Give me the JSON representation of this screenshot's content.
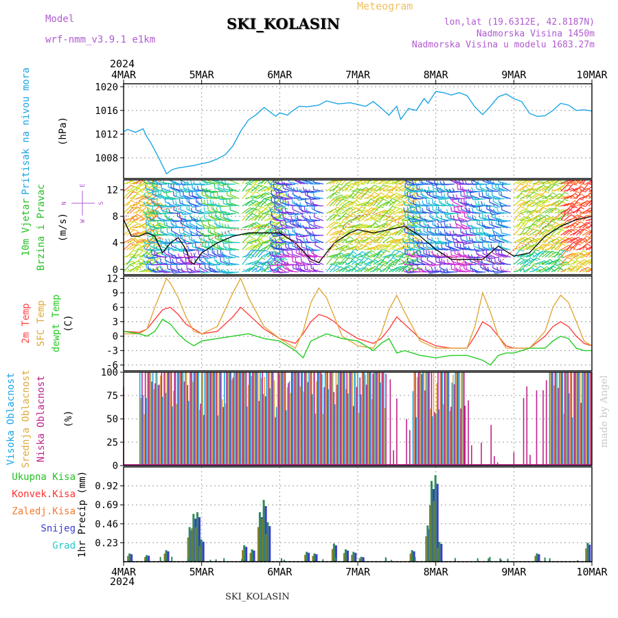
{
  "header": {
    "title": "SKI_KOLASIN",
    "meteogram_label": "Meteogram",
    "model_label": "Model",
    "model_value": "wrf-nmm_v3.9.1 e1km",
    "info_lines": [
      "lon,lat (19.6312E, 42.8187N)",
      "Nadmorska Visina 1450m",
      "Nadmorska Visina u modelu 1683.27m"
    ],
    "year_top": "2024",
    "year_bottom": "2024",
    "footer": "SKI_KOLASIN",
    "credit": "made by Angel"
  },
  "colors": {
    "pressure": "#1aa4e6",
    "wind_label": "#22c022",
    "t2m": "#ff4040",
    "sfc": "#e0a83a",
    "dewpt": "#22cc22",
    "high_cloud": "#1aa4e6",
    "mid_cloud": "#e0a83a",
    "low_cloud": "#c0208a",
    "total": "#22c022",
    "conv": "#ff3030",
    "frz": "#f07a30",
    "snow": "#3a3ad0",
    "grad": "#20c8c8",
    "compass": "#b05ad0"
  },
  "chart_data": [
    {
      "type": "line",
      "id": "pressure",
      "ylabel": [
        "Pritisak na nivou mora",
        "(hPa)"
      ],
      "x_categories": [
        "4MAR",
        "5MAR",
        "6MAR",
        "7MAR",
        "8MAR",
        "9MAR",
        "10MAR"
      ],
      "ylim": [
        1004.5,
        1020.5
      ],
      "yticks": [
        1008,
        1012,
        1016,
        1020
      ],
      "series": [
        {
          "x": [
            0,
            0.05,
            0.15,
            0.25,
            0.3,
            0.35,
            0.45,
            0.55,
            0.62,
            0.7,
            0.8,
            0.9,
            1.0,
            1.1,
            1.2,
            1.3,
            1.4,
            1.5,
            1.6,
            1.7,
            1.8,
            1.85,
            1.95,
            2.0,
            2.1,
            2.15,
            2.25,
            2.35,
            2.5,
            2.6,
            2.75,
            2.9,
            3.0,
            3.1,
            3.2,
            3.3,
            3.4,
            3.5,
            3.55,
            3.65,
            3.75,
            3.85,
            3.9,
            4.0,
            4.1,
            4.2,
            4.3,
            4.4,
            4.5,
            4.6,
            4.7,
            4.8,
            4.9,
            5.0,
            5.1,
            5.2,
            5.3,
            5.4,
            5.5,
            5.6,
            5.7,
            5.8,
            5.9,
            6.0
          ],
          "y": [
            1012.4,
            1012.8,
            1012.3,
            1012.9,
            1011.5,
            1010.5,
            1008.0,
            1005.3,
            1006.0,
            1006.3,
            1006.5,
            1006.7,
            1007.0,
            1007.3,
            1007.8,
            1008.5,
            1010.0,
            1012.5,
            1014.4,
            1015.3,
            1016.5,
            1016.0,
            1015.0,
            1015.6,
            1015.2,
            1015.8,
            1016.7,
            1016.6,
            1016.9,
            1017.6,
            1017.1,
            1017.3,
            1017.0,
            1016.7,
            1017.5,
            1016.4,
            1015.2,
            1016.7,
            1014.5,
            1016.3,
            1016.0,
            1018.0,
            1017.2,
            1019.2,
            1019.0,
            1018.6,
            1019.0,
            1018.5,
            1016.6,
            1015.3,
            1016.7,
            1018.3,
            1018.8,
            1018.0,
            1017.5,
            1015.5,
            1015.0,
            1015.1,
            1016.0,
            1017.2,
            1016.9,
            1016.0,
            1016.1,
            1015.9
          ]
        }
      ]
    },
    {
      "type": "line",
      "id": "wind",
      "ylabel": [
        "10m Vjetar",
        "Brzina i Pravac",
        "(m/s)"
      ],
      "compass": [
        "N",
        "W",
        "E",
        "S"
      ],
      "ylim": [
        -0.8,
        13.5
      ],
      "yticks": [
        0,
        4,
        8,
        12
      ],
      "series": [
        {
          "name": "speed",
          "x": [
            0,
            0.1,
            0.2,
            0.3,
            0.4,
            0.5,
            0.6,
            0.7,
            0.8,
            0.85,
            0.9,
            1.0,
            1.2,
            1.4,
            1.6,
            1.8,
            2.0,
            2.2,
            2.4,
            2.5,
            2.6,
            2.7,
            2.9,
            3.0,
            3.2,
            3.4,
            3.6,
            3.8,
            4.0,
            4.2,
            4.4,
            4.6,
            4.8,
            5.0,
            5.2,
            5.4,
            5.6,
            5.8,
            6.0
          ],
          "y": [
            7.5,
            5,
            5,
            5.5,
            5,
            2.5,
            4,
            4.8,
            3,
            1.2,
            0.8,
            2.5,
            4,
            5,
            5.5,
            5.5,
            5.5,
            4,
            1.5,
            1,
            2.5,
            4,
            5.5,
            6,
            5.5,
            6,
            6.5,
            5,
            3,
            1.5,
            1.5,
            1.5,
            3.5,
            2,
            2.5,
            5,
            6.5,
            7.5,
            8
          ]
        },
        {
          "name": "sfc-speed",
          "x": [
            0,
            0.15,
            0.3,
            0.5,
            0.7,
            0.85,
            1.0,
            1.2,
            1.4,
            1.6,
            1.8,
            2.0,
            2.2,
            2.4,
            2.6,
            2.8,
            3.0,
            3.2,
            3.4,
            3.6,
            3.8,
            4.0,
            4.2,
            4.4,
            4.6,
            4.8,
            5.0,
            5.2,
            5.4,
            5.6,
            5.8,
            6.0
          ],
          "y": [
            7.5,
            10,
            11,
            9,
            9.5,
            1,
            4,
            5,
            6,
            6,
            6.5,
            6,
            4,
            1,
            2,
            6,
            8,
            8.5,
            8,
            6.5,
            4,
            2,
            2,
            0.7,
            1.5,
            0.8,
            3,
            4,
            6.5,
            8.5,
            8,
            8
          ]
        }
      ]
    },
    {
      "type": "line",
      "id": "temperature",
      "ylabel": [
        "2m Temp",
        "SFC Temp",
        "dewpt Temp",
        "(C)"
      ],
      "ylim": [
        -7.2,
        12.5
      ],
      "yticks": [
        -6,
        -3,
        0,
        3,
        6,
        9,
        12
      ],
      "series": [
        {
          "name": "2m Temp",
          "x": [
            0,
            0.2,
            0.3,
            0.4,
            0.5,
            0.6,
            0.7,
            0.8,
            0.9,
            1.0,
            1.2,
            1.4,
            1.5,
            1.6,
            1.7,
            1.8,
            2.0,
            2.2,
            2.3,
            2.4,
            2.5,
            2.6,
            2.7,
            2.8,
            3.0,
            3.2,
            3.3,
            3.4,
            3.5,
            3.6,
            3.7,
            3.8,
            4.0,
            4.2,
            4.4,
            4.5,
            4.6,
            4.7,
            4.8,
            4.9,
            5.0,
            5.2,
            5.4,
            5.5,
            5.6,
            5.7,
            5.8,
            5.9,
            6.0
          ],
          "y": [
            1,
            0.8,
            1.5,
            3.5,
            5.5,
            6,
            4.5,
            2.5,
            1.5,
            0.5,
            1,
            4,
            6,
            4.5,
            3,
            1.5,
            -0.5,
            -1.5,
            0.5,
            3,
            4.5,
            4,
            3,
            1.5,
            -0.5,
            -1.5,
            -0.5,
            1.5,
            4,
            2.5,
            1,
            -0.5,
            -2,
            -2.5,
            -2.5,
            0,
            3,
            2,
            0,
            -2,
            -2.5,
            -2.5,
            0,
            2,
            3,
            2,
            0,
            -1.5,
            -2
          ]
        },
        {
          "name": "SFC Temp",
          "x": [
            0,
            0.2,
            0.3,
            0.4,
            0.5,
            0.55,
            0.6,
            0.7,
            0.8,
            0.9,
            1.0,
            1.2,
            1.4,
            1.5,
            1.6,
            1.7,
            1.8,
            2.0,
            2.2,
            2.3,
            2.4,
            2.5,
            2.6,
            2.7,
            2.8,
            3.0,
            3.2,
            3.3,
            3.4,
            3.5,
            3.6,
            3.7,
            3.8,
            4.0,
            4.2,
            4.4,
            4.5,
            4.6,
            4.7,
            4.8,
            4.9,
            5.0,
            5.2,
            5.4,
            5.5,
            5.6,
            5.7,
            5.8,
            5.9,
            6.0
          ],
          "y": [
            0.5,
            0.5,
            1.5,
            6,
            10,
            12,
            11,
            8,
            4,
            1,
            0.5,
            2,
            9,
            12,
            8,
            5,
            2,
            -0.5,
            -2.5,
            1,
            7,
            10,
            8,
            4,
            0,
            -2,
            -2.5,
            0.5,
            5.5,
            8.5,
            5,
            2,
            -1,
            -2.5,
            -2.5,
            -2.5,
            2,
            9,
            5,
            0,
            -2.5,
            -2.5,
            -2.5,
            1,
            6,
            8.5,
            7,
            3,
            -1,
            -2
          ]
        },
        {
          "name": "dewpt Temp",
          "x": [
            0,
            0.2,
            0.3,
            0.4,
            0.5,
            0.6,
            0.7,
            0.8,
            0.9,
            1.0,
            1.2,
            1.4,
            1.6,
            1.8,
            2.0,
            2.2,
            2.3,
            2.4,
            2.6,
            2.8,
            3.0,
            3.2,
            3.3,
            3.4,
            3.5,
            3.6,
            3.8,
            4.0,
            4.2,
            4.4,
            4.6,
            4.7,
            4.8,
            4.9,
            5.0,
            5.2,
            5.4,
            5.5,
            5.6,
            5.7,
            5.8,
            5.9,
            6.0
          ],
          "y": [
            1,
            0.5,
            0,
            1,
            3.5,
            2.5,
            0.5,
            -1,
            -2,
            -1,
            -0.5,
            0,
            0.5,
            -0.5,
            -1,
            -3,
            -4.5,
            -1,
            0.5,
            -0.5,
            -1,
            -3,
            -1.5,
            -0.5,
            -3.5,
            -3,
            -4,
            -4.5,
            -4,
            -4,
            -5,
            -6,
            -4,
            -3.5,
            -3.5,
            -2.5,
            -2.5,
            -1,
            0,
            -0.5,
            -2.5,
            -3,
            -3
          ]
        }
      ]
    },
    {
      "type": "bar",
      "id": "clouds",
      "ylabel": [
        "Visoka Oblacnost",
        "Srednja Oblacnost",
        "Niska Oblacnost",
        "(%)"
      ],
      "ylim": [
        0,
        100
      ],
      "yticks": [
        0,
        25,
        50,
        75,
        100
      ],
      "series_names": [
        "Visoka",
        "Srednja",
        "Niska"
      ]
    },
    {
      "type": "bar",
      "id": "precip",
      "ylabel": [
        "1hr Precip (mm)"
      ],
      "legend": [
        "Ukupna Kisa",
        "Konvek.Kisa",
        "Zaledj.Kisa",
        "Snijeg",
        "Grad"
      ],
      "ylim": [
        0,
        1.15
      ],
      "yticks": [
        0.23,
        0.46,
        0.69,
        0.92
      ],
      "ytick_labels": [
        "0.23",
        "0.46",
        "0.69",
        "0.92"
      ],
      "bars": [
        {
          "x": 0.08,
          "v": 0.1
        },
        {
          "x": 0.3,
          "v": 0.08
        },
        {
          "x": 0.55,
          "v": 0.14
        },
        {
          "x": 0.85,
          "v": 0.42
        },
        {
          "x": 0.9,
          "v": 0.58
        },
        {
          "x": 0.95,
          "v": 0.6
        },
        {
          "x": 1.0,
          "v": 0.27
        },
        {
          "x": 1.55,
          "v": 0.2
        },
        {
          "x": 1.65,
          "v": 0.15
        },
        {
          "x": 1.75,
          "v": 0.6
        },
        {
          "x": 1.8,
          "v": 0.75
        },
        {
          "x": 1.85,
          "v": 0.48
        },
        {
          "x": 2.35,
          "v": 0.12
        },
        {
          "x": 2.45,
          "v": 0.1
        },
        {
          "x": 2.7,
          "v": 0.22
        },
        {
          "x": 2.85,
          "v": 0.15
        },
        {
          "x": 2.95,
          "v": 0.12
        },
        {
          "x": 3.05,
          "v": 0.06
        },
        {
          "x": 3.7,
          "v": 0.14
        },
        {
          "x": 3.9,
          "v": 0.44
        },
        {
          "x": 3.95,
          "v": 0.98
        },
        {
          "x": 4.0,
          "v": 1.05
        },
        {
          "x": 4.05,
          "v": 0.24
        },
        {
          "x": 5.3,
          "v": 0.1
        },
        {
          "x": 5.95,
          "v": 0.23
        }
      ]
    }
  ]
}
